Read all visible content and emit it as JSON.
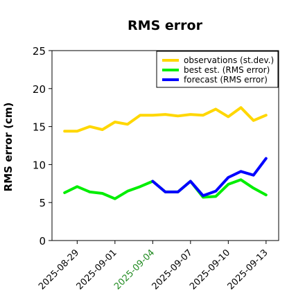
{
  "chart_data": {
    "type": "line",
    "title": "RMS error",
    "xlabel": "",
    "ylabel": "RMS error (cm)",
    "ylim": [
      0,
      25
    ],
    "yticks": [
      0,
      5,
      10,
      15,
      20,
      25
    ],
    "xlim": [
      "2025-08-27",
      "2025-09-14"
    ],
    "xticks": [
      "2025-08-29",
      "2025-09-01",
      "2025-09-04",
      "2025-09-07",
      "2025-09-10",
      "2025-09-13"
    ],
    "highlight_tick": "2025-09-04",
    "highlight_color": "#228b22",
    "legend_position": "top-right",
    "grid": false,
    "x": [
      "2025-08-28",
      "2025-08-29",
      "2025-08-30",
      "2025-08-31",
      "2025-09-01",
      "2025-09-02",
      "2025-09-03",
      "2025-09-04",
      "2025-09-05",
      "2025-09-06",
      "2025-09-07",
      "2025-09-08",
      "2025-09-09",
      "2025-09-10",
      "2025-09-11",
      "2025-09-12",
      "2025-09-13"
    ],
    "series": [
      {
        "name": "observations (st.dev.)",
        "color": "#ffd700",
        "values": [
          14.4,
          14.4,
          15.0,
          14.6,
          15.6,
          15.3,
          16.5,
          16.5,
          16.6,
          16.4,
          16.6,
          16.5,
          17.3,
          16.3,
          17.5,
          15.8,
          16.5
        ]
      },
      {
        "name": "best est. (RMS error)",
        "color": "#00ee00",
        "values": [
          6.3,
          7.1,
          6.4,
          6.2,
          5.5,
          6.5,
          7.1,
          7.8,
          6.4,
          6.4,
          7.8,
          5.7,
          5.8,
          7.4,
          8.0,
          6.9,
          6.0
        ]
      },
      {
        "name": "forecast (RMS error)",
        "color": "#0000ff",
        "values": [
          null,
          null,
          null,
          null,
          null,
          null,
          null,
          7.8,
          6.4,
          6.4,
          7.8,
          5.9,
          6.5,
          8.3,
          9.1,
          8.6,
          10.8
        ]
      }
    ]
  }
}
